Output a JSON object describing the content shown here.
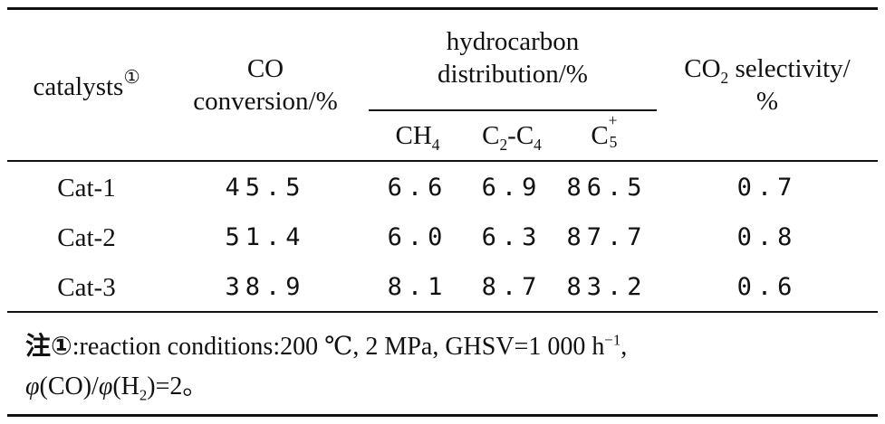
{
  "header": {
    "catalysts": "catalysts",
    "catalysts_mark": "①",
    "co_line1": "CO",
    "co_line2": "conversion/%",
    "hydro_line1": "hydrocarbon",
    "hydro_line2": "distribution/%",
    "co2_line1_prefix": "CO",
    "co2_line1_sub": "2",
    "co2_line1_suffix": " selectivity/",
    "co2_line2": "%",
    "sub_ch4_main": "CH",
    "sub_ch4_sub": "4",
    "sub_c2c4_a": "C",
    "sub_c2c4_a_sub": "2",
    "sub_c2c4_dash": "-C",
    "sub_c2c4_b_sub": "4",
    "sub_c5_main": "C",
    "sub_c5_sub": "5",
    "sub_c5_sup": "+"
  },
  "rows": [
    {
      "catalyst": "Cat-1",
      "co_conversion": "45.5",
      "ch4": "6.6",
      "c2c4": "6.9",
      "c5": "86.5",
      "co2": "0.7"
    },
    {
      "catalyst": "Cat-2",
      "co_conversion": "51.4",
      "ch4": "6.0",
      "c2c4": "6.3",
      "c5": "87.7",
      "co2": "0.8"
    },
    {
      "catalyst": "Cat-3",
      "co_conversion": "38.9",
      "ch4": "8.1",
      "c2c4": "8.7",
      "c5": "83.2",
      "co2": "0.6"
    }
  ],
  "note": {
    "label": "注①",
    "line1": ":reaction conditions:200 ℃, 2 MPa, GHSV=1 000 h",
    "line1_sup": "−1",
    "line1_end": ",",
    "line2_phi1": "φ",
    "line2_a": "(CO)/",
    "line2_phi2": "φ",
    "line2_b": "(H",
    "line2_b_sub": "2",
    "line2_c": ")=2。"
  }
}
